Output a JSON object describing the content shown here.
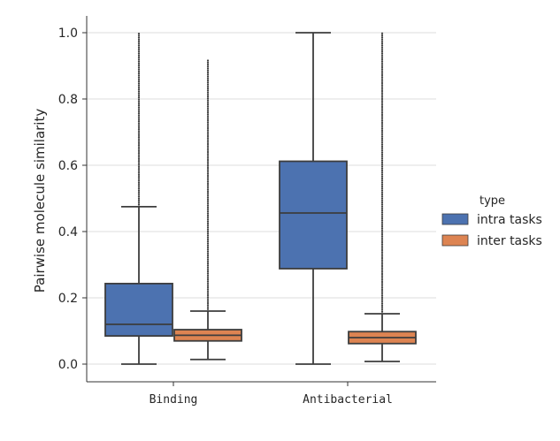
{
  "chart_data": {
    "type": "box",
    "categories": [
      "Binding",
      "Antibacterial"
    ],
    "ylabel": "Pairwise molecule similarity",
    "xlabel": "",
    "ylim": [
      -0.05,
      1.05
    ],
    "yticks": [
      "0.0",
      "0.2",
      "0.4",
      "0.6",
      "0.8",
      "1.0"
    ],
    "grid": true,
    "legend": {
      "title": "type",
      "placement": "right"
    },
    "series": [
      {
        "name": "intra tasks",
        "color": "#4c72b0",
        "boxes": [
          {
            "category": "Binding",
            "whisker_low": 0.0,
            "q1": 0.085,
            "median": 0.12,
            "q3": 0.243,
            "whisker_high": 0.475,
            "outliers_range": [
              0.475,
              1.0
            ]
          },
          {
            "category": "Antibacterial",
            "whisker_low": 0.0,
            "q1": 0.288,
            "median": 0.456,
            "q3": 0.612,
            "whisker_high": 1.0,
            "outliers_range": []
          }
        ]
      },
      {
        "name": "inter tasks",
        "color": "#dd8452",
        "boxes": [
          {
            "category": "Binding",
            "whisker_low": 0.014,
            "q1": 0.07,
            "median": 0.087,
            "q3": 0.104,
            "whisker_high": 0.16,
            "outliers_range": [
              0.16,
              0.92
            ]
          },
          {
            "category": "Antibacterial",
            "whisker_low": 0.008,
            "q1": 0.062,
            "median": 0.08,
            "q3": 0.098,
            "whisker_high": 0.152,
            "outliers_range": [
              0.152,
              1.0
            ]
          }
        ]
      }
    ]
  }
}
